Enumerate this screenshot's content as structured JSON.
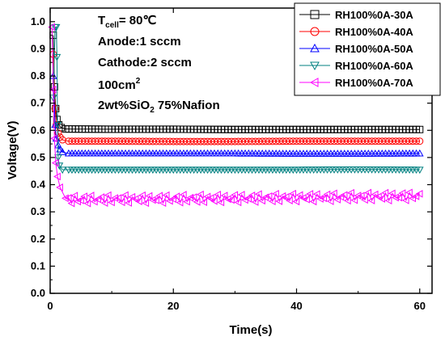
{
  "chart_data": {
    "type": "line",
    "xlabel": "Time(s)",
    "ylabel": "Voltage(V)",
    "xlim": [
      0,
      62
    ],
    "ylim": [
      0.0,
      1.05
    ],
    "xticks": [
      "0",
      "20",
      "40",
      "60"
    ],
    "yticks": [
      "0.0",
      "0.1",
      "0.2",
      "0.3",
      "0.4",
      "0.5",
      "0.6",
      "0.7",
      "0.8",
      "0.9",
      "1.0"
    ],
    "grid": false,
    "legend_position": "top-right",
    "annotations": {
      "line1_main": "T",
      "line1_sub": "cell",
      "line1_rest": "= 80℃",
      "line2": "Anode:1 sccm",
      "line3": "Cathode:2 sccm",
      "line4_main": "100cm",
      "line4_sup": "2",
      "line5_a": "2wt%SiO",
      "line5_sub": "2",
      "line5_b": " 75%Nafion"
    },
    "series": [
      {
        "name": "RH100%0A-30A",
        "color": "#000000",
        "marker": "square",
        "x": [
          0.5,
          0.7,
          0.9,
          1.1,
          1.4,
          1.8,
          2.5,
          10,
          20,
          30,
          40,
          50,
          60
        ],
        "y": [
          0.95,
          0.76,
          0.68,
          0.64,
          0.62,
          0.61,
          0.605,
          0.604,
          0.604,
          0.603,
          0.603,
          0.603,
          0.603
        ]
      },
      {
        "name": "RH100%0A-40A",
        "color": "#ff0000",
        "marker": "circle",
        "x": [
          0.5,
          0.8,
          1.0,
          1.3,
          1.6,
          2.0,
          3,
          10,
          20,
          30,
          40,
          50,
          60
        ],
        "y": [
          0.88,
          0.68,
          0.62,
          0.59,
          0.575,
          0.565,
          0.56,
          0.56,
          0.559,
          0.559,
          0.56,
          0.56,
          0.56
        ]
      },
      {
        "name": "RH100%0A-50A",
        "color": "#0000ff",
        "marker": "triangle-up",
        "x": [
          0.5,
          0.8,
          1.0,
          1.3,
          1.6,
          2.0,
          3,
          10,
          20,
          30,
          40,
          50,
          60
        ],
        "y": [
          0.8,
          0.62,
          0.57,
          0.545,
          0.53,
          0.52,
          0.515,
          0.515,
          0.515,
          0.515,
          0.514,
          0.514,
          0.515
        ]
      },
      {
        "name": "RH100%0A-60A",
        "color": "#008080",
        "marker": "triangle-down",
        "x": [
          0.5,
          0.8,
          1.0,
          1.1,
          1.2,
          1.3,
          1.5,
          2.0,
          3,
          10,
          20,
          30,
          40,
          50,
          60
        ],
        "y": [
          0.72,
          0.98,
          0.98,
          0.87,
          0.62,
          0.5,
          0.47,
          0.455,
          0.455,
          0.455,
          0.455,
          0.455,
          0.455,
          0.456,
          0.455
        ]
      },
      {
        "name": "RH100%0A-70A",
        "color": "#ff00ff",
        "marker": "triangle-left",
        "x": [
          0.3,
          0.5,
          0.7,
          0.9,
          1.2,
          1.6,
          2.5,
          5,
          10,
          15,
          20,
          25,
          30,
          35,
          40,
          45,
          50,
          55,
          60
        ],
        "y": [
          0.98,
          0.75,
          0.57,
          0.48,
          0.43,
          0.39,
          0.37,
          0.37,
          0.365,
          0.37,
          0.36,
          0.365,
          0.36,
          0.37,
          0.365,
          0.36,
          0.365,
          0.37,
          0.36
        ],
        "oscillation": {
          "from": 2.5,
          "to": 60,
          "center": 0.36,
          "amplitude": 0.03
        }
      }
    ]
  }
}
